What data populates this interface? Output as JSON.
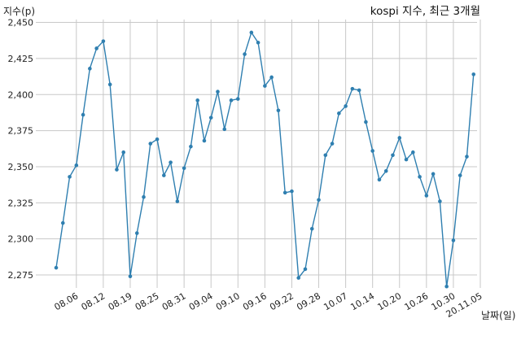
{
  "chart_data": {
    "type": "line",
    "title": "kospi 지수, 최근 3개월",
    "xlabel": "날짜(일)",
    "ylabel": "지수(p)",
    "ylim": [
      2266,
      2452
    ],
    "yticks": [
      2275,
      2300,
      2325,
      2350,
      2375,
      2400,
      2425,
      2450
    ],
    "ytick_labels": [
      "2,275",
      "2,300",
      "2,325",
      "2,350",
      "2,375",
      "2,400",
      "2,425",
      "2,450"
    ],
    "xtick_labels": [
      "08.06",
      "08.12",
      "08.19",
      "08.25",
      "08.31",
      "09.04",
      "09.10",
      "09.16",
      "09.22",
      "09.28",
      "10.07",
      "10.14",
      "10.20",
      "10.26",
      "10.30",
      "20.11.05"
    ],
    "xtick_index": [
      3,
      7,
      11,
      15,
      19,
      23,
      27,
      31,
      35,
      39,
      43,
      47,
      51,
      55,
      59,
      63
    ],
    "grid": true,
    "color": "#2f7fb0",
    "series": [
      {
        "values": [
          2280,
          2311,
          2343,
          2351,
          2386,
          2418,
          2432,
          2437,
          2407,
          2348,
          2360,
          2274,
          2304,
          2329,
          2366,
          2369,
          2344,
          2353,
          2326,
          2349,
          2364,
          2396,
          2368,
          2384,
          2402,
          2376,
          2396,
          2397,
          2428,
          2443,
          2436,
          2406,
          2412,
          2389,
          2332,
          2333,
          2273,
          2279,
          2307,
          2327,
          2358,
          2366,
          2387,
          2392,
          2404,
          2403,
          2381,
          2361,
          2341,
          2347,
          2358,
          2370,
          2355,
          2360,
          2343,
          2330,
          2345,
          2326,
          2267,
          2299,
          2344,
          2357,
          2414
        ]
      }
    ]
  }
}
